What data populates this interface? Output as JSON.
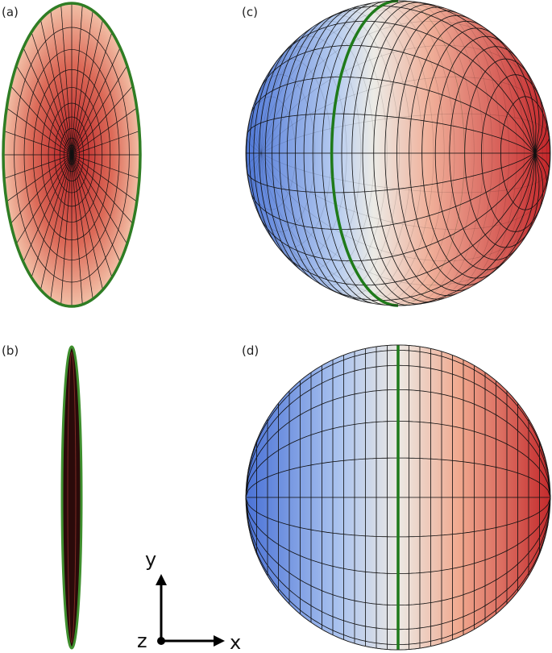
{
  "panels": {
    "a": "(a)",
    "b": "(b)",
    "c": "(c)",
    "d": "(d)"
  },
  "axes": {
    "x": "x",
    "y": "y",
    "z": "z"
  }
}
